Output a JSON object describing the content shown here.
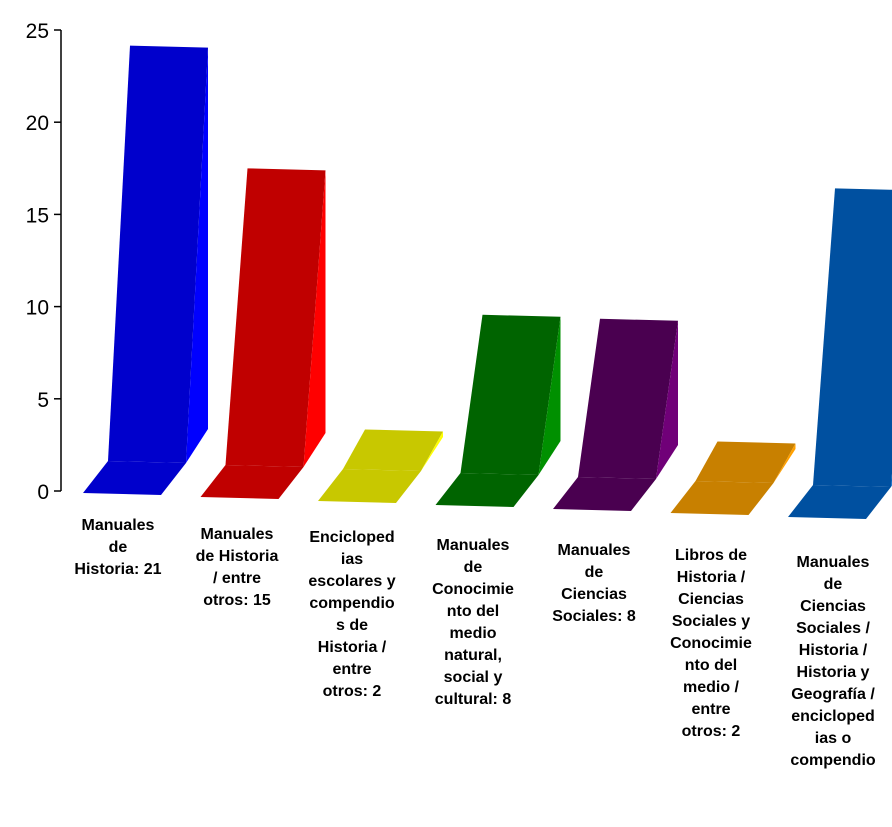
{
  "chart_data": {
    "type": "bar",
    "title": "",
    "xlabel": "",
    "ylabel": "",
    "ylim": [
      0,
      25
    ],
    "yticks": [
      0,
      5,
      10,
      15,
      20,
      25
    ],
    "grid": false,
    "style": "3d-perspective",
    "categories": [
      "Manuales de Historia: 21",
      "Manuales de Historia / entre otros: 15",
      "Enciclopedias escolares y compendios de Historia / entre otros: 2",
      "Manuales de Conocimiento del medio natural, social y cultural: 8",
      "Manuales de Ciencias Sociales: 8",
      "Libros de Historia / Ciencias Sociales y Conocimiento del medio / entre otros: 2",
      "Manuales de Ciencias Sociales / Historia / Historia y Geografía / enciclopedias o compendio"
    ],
    "label_lines": [
      "Manuales\nde\nHistoria: 21",
      "Manuales\nde Historia\n/ entre\notros: 15",
      "Encicloped\nias\nescolares y\ncompendio\ns de\nHistoria /\nentre\notros: 2",
      "Manuales\nde\nConocimie\nnto del\nmedio\nnatural,\nsocial y\ncultural: 8",
      "Manuales\nde\nCiencias\nSociales: 8",
      "Libros de\nHistoria /\nCiencias\nSociales y\nConocimie\nnto del\nmedio /\nentre\notros: 2",
      "Manuales\nde\nCiencias\nSociales /\nHistoria /\nHistoria y\nGeografía /\nencicloped\nias o\ncompendio"
    ],
    "values": [
      21,
      15,
      2,
      8,
      8,
      2,
      15
    ],
    "colors": [
      {
        "front": "#0000cc",
        "side": "#0000ff",
        "floor": "#0000cc"
      },
      {
        "front": "#c00000",
        "side": "#ff0000",
        "floor": "#c00000"
      },
      {
        "front": "#c8c800",
        "side": "#ffff00",
        "floor": "#c8c800"
      },
      {
        "front": "#006400",
        "side": "#009000",
        "floor": "#006400"
      },
      {
        "front": "#4a0050",
        "side": "#700078",
        "floor": "#4a0050"
      },
      {
        "front": "#c88000",
        "side": "#ffa000",
        "floor": "#c88000"
      },
      {
        "front": "#0050a0",
        "side": "#0068c8",
        "floor": "#0050a0"
      }
    ]
  }
}
